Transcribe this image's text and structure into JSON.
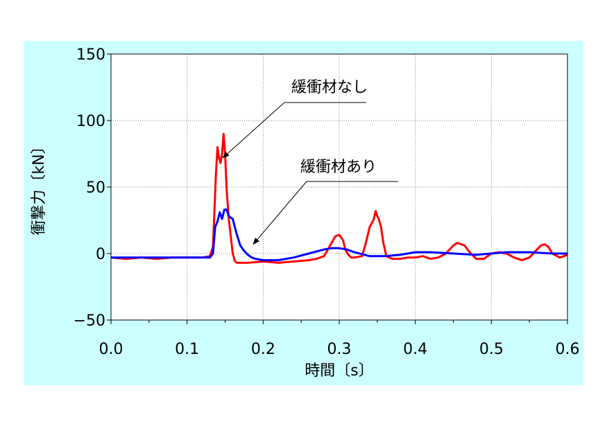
{
  "chart_data": {
    "type": "line",
    "xlabel": "時間〔s〕",
    "ylabel": "衝撃力〔kN〕",
    "xlim": [
      0.0,
      0.6
    ],
    "ylim": [
      -50,
      150
    ],
    "xticks": [
      "0.0",
      "0.1",
      "0.2",
      "0.3",
      "0.4",
      "0.5",
      "0.6"
    ],
    "yticks": [
      "150",
      "100",
      "50",
      "0",
      "−50"
    ],
    "grid": true,
    "colors": {
      "background": "#ccffff",
      "plot_area": "#ffffff"
    },
    "annotations": [
      {
        "text": "緩衝材なし",
        "series": 0,
        "point_to": [
          0.147,
          72
        ]
      },
      {
        "text": "緩衝材あり",
        "series": 1,
        "point_to": [
          0.187,
          7
        ]
      }
    ],
    "series": [
      {
        "color": "#ff0000",
        "x": [
          0.0,
          0.02,
          0.04,
          0.06,
          0.08,
          0.1,
          0.12,
          0.13,
          0.134,
          0.138,
          0.14,
          0.142,
          0.144,
          0.146,
          0.148,
          0.15,
          0.152,
          0.155,
          0.16,
          0.163,
          0.166,
          0.17,
          0.18,
          0.2,
          0.22,
          0.24,
          0.26,
          0.27,
          0.28,
          0.285,
          0.29,
          0.295,
          0.3,
          0.305,
          0.308,
          0.312,
          0.316,
          0.32,
          0.33,
          0.335,
          0.34,
          0.345,
          0.348,
          0.35,
          0.352,
          0.355,
          0.358,
          0.362,
          0.366,
          0.37,
          0.38,
          0.39,
          0.4,
          0.41,
          0.42,
          0.43,
          0.44,
          0.45,
          0.455,
          0.46,
          0.465,
          0.47,
          0.48,
          0.49,
          0.5,
          0.51,
          0.52,
          0.53,
          0.54,
          0.55,
          0.56,
          0.565,
          0.57,
          0.575,
          0.58,
          0.59,
          0.6
        ],
        "values": [
          -3,
          -4,
          -3,
          -4,
          -3,
          -3,
          -3,
          -2,
          5,
          60,
          80,
          72,
          68,
          75,
          90,
          75,
          48,
          25,
          0,
          -6,
          -7,
          -7,
          -7,
          -6,
          -7,
          -6,
          -5,
          -4,
          -2,
          3,
          8,
          13,
          14,
          10,
          3,
          -1,
          -3,
          -3,
          -2,
          8,
          20,
          25,
          32,
          28,
          26,
          20,
          8,
          -2,
          -3,
          -4,
          -4,
          -3,
          -3,
          -2,
          -4,
          -3,
          0,
          6,
          8,
          7,
          6,
          2,
          -4,
          -4,
          0,
          1,
          0,
          -3,
          -5,
          -3,
          3,
          6,
          7,
          5,
          0,
          -3,
          -1
        ]
      },
      {
        "color": "#0000ff",
        "x": [
          0.0,
          0.04,
          0.08,
          0.12,
          0.13,
          0.134,
          0.137,
          0.14,
          0.143,
          0.146,
          0.149,
          0.152,
          0.155,
          0.16,
          0.165,
          0.17,
          0.175,
          0.18,
          0.185,
          0.19,
          0.2,
          0.22,
          0.24,
          0.26,
          0.28,
          0.29,
          0.3,
          0.31,
          0.32,
          0.34,
          0.36,
          0.38,
          0.4,
          0.42,
          0.45,
          0.48,
          0.5,
          0.52,
          0.55,
          0.58,
          0.6
        ],
        "values": [
          -3,
          -3,
          -3,
          -3,
          -3,
          0,
          20,
          24,
          31,
          26,
          33,
          33,
          28,
          26,
          15,
          6,
          2,
          -1,
          -3,
          -4,
          -5,
          -5,
          -3,
          0,
          3,
          4,
          4,
          3,
          1,
          -2,
          -2,
          -1,
          1,
          1,
          0,
          -1,
          0,
          1,
          1,
          0,
          0
        ]
      }
    ]
  }
}
